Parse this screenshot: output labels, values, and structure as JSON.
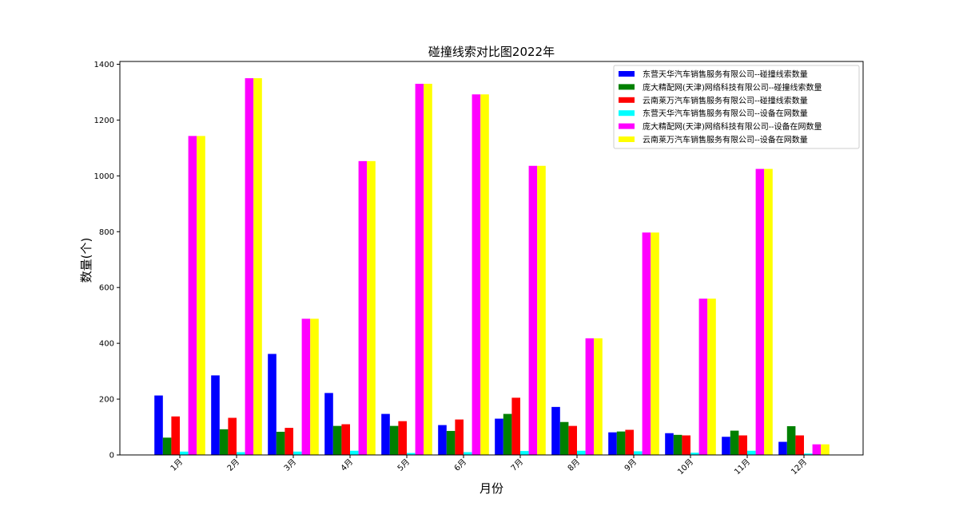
{
  "chart_data": {
    "type": "bar",
    "title": "碰撞线索对比图2022年",
    "xlabel": "月份",
    "ylabel": "数量(个)",
    "ylim": [
      0,
      1410
    ],
    "yticks": [
      0,
      200,
      400,
      600,
      800,
      1000,
      1200,
      1400
    ],
    "grid": false,
    "legend_position": "top-right",
    "categories": [
      "1月",
      "2月",
      "3月",
      "4月",
      "5月",
      "6月",
      "7月",
      "8月",
      "9月",
      "10月",
      "11月",
      "12月"
    ],
    "series": [
      {
        "name": "东营天华汽车销售服务有限公司--碰撞线索数量",
        "color": "#0000ff",
        "values": [
          213,
          285,
          362,
          222,
          147,
          107,
          130,
          172,
          81,
          78,
          65,
          47
        ]
      },
      {
        "name": "庞大精配网(天津)网络科技有限公司--碰撞线索数量",
        "color": "#008000",
        "values": [
          62,
          92,
          83,
          104,
          104,
          86,
          147,
          118,
          84,
          72,
          87,
          103
        ]
      },
      {
        "name": "云南莱万汽车销售服务有限公司--碰撞线索数量",
        "color": "#ff0000",
        "values": [
          138,
          133,
          97,
          110,
          121,
          127,
          205,
          104,
          90,
          70,
          70,
          70
        ]
      },
      {
        "name": "东营天华汽车销售服务有限公司--设备在网数量",
        "color": "#00ffff",
        "values": [
          12,
          10,
          12,
          15,
          7,
          10,
          14,
          15,
          13,
          8,
          15,
          5
        ]
      },
      {
        "name": "庞大精配网(天津)网络科技有限公司--设备在网数量",
        "color": "#ff00ff",
        "values": [
          1143,
          1350,
          488,
          1053,
          1330,
          1292,
          1036,
          418,
          797,
          560,
          1025,
          38
        ]
      },
      {
        "name": "云南莱万汽车销售服务有限公司--设备在网数量",
        "color": "#ffff00",
        "values": [
          1143,
          1350,
          488,
          1053,
          1330,
          1292,
          1036,
          418,
          797,
          560,
          1025,
          38
        ]
      }
    ]
  }
}
